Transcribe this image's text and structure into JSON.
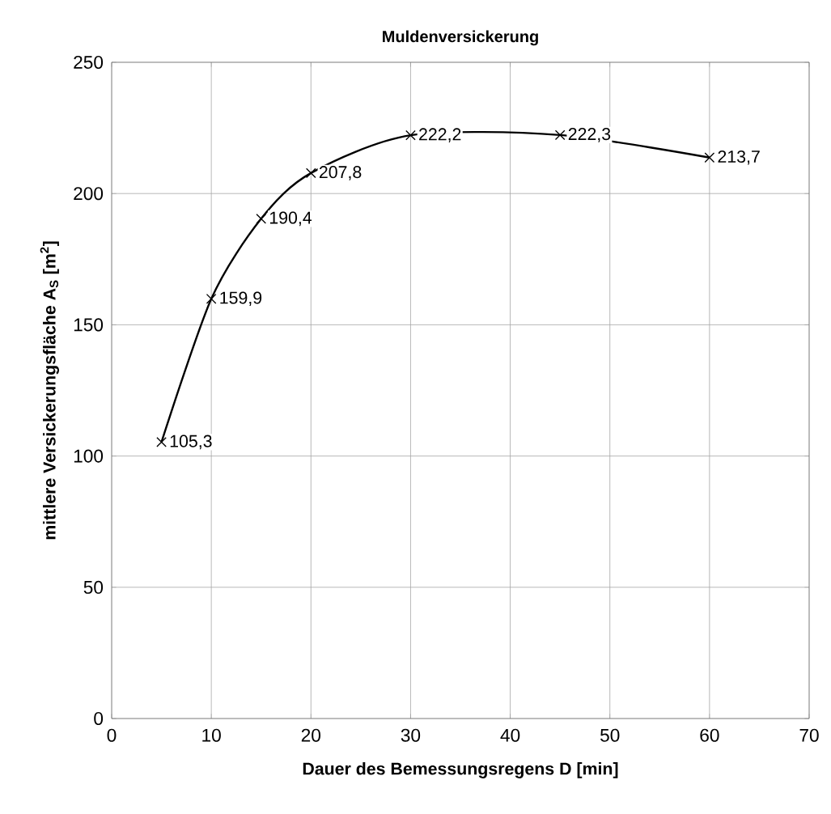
{
  "chart_data": {
    "type": "line",
    "title": "Muldenversickerung",
    "xlabel": "Dauer des Bemessungsregens  D [min]",
    "ylabel": "mittlere Versickerungsfläche A$_{S}$ [m$^{2}$]",
    "x": [
      5,
      10,
      15,
      20,
      30,
      45,
      60
    ],
    "values": [
      105.3,
      159.9,
      190.4,
      207.8,
      222.2,
      222.3,
      213.7
    ],
    "value_labels": [
      "105,3",
      "159,9",
      "190,4",
      "207,8",
      "222,2",
      "222,3",
      "213,7"
    ],
    "color": "#000000",
    "marker": "cross",
    "grid": true,
    "xlim": [
      0,
      70
    ],
    "xticks": [
      0,
      10,
      20,
      30,
      40,
      50,
      60,
      70
    ],
    "ylim": [
      0,
      250
    ],
    "yticks": [
      0,
      50,
      100,
      150,
      200,
      250
    ]
  }
}
